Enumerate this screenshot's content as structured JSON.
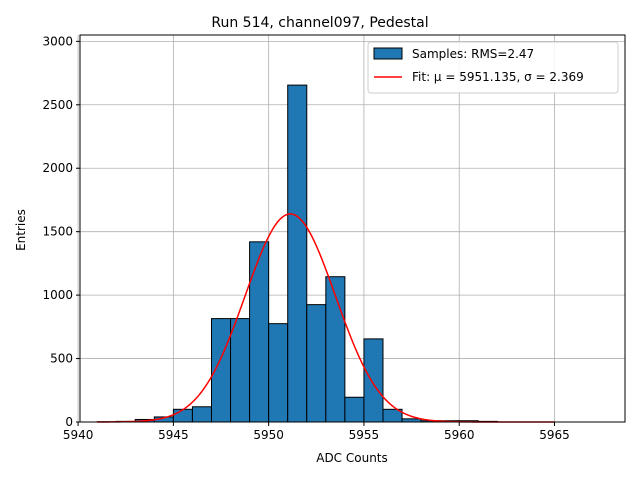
{
  "chart_data": {
    "type": "bar",
    "title": "Run 514, channel097, Pedestal",
    "xlabel": "ADC Counts",
    "ylabel": "Entries",
    "xlim": [
      5940.1,
      5968.7
    ],
    "ylim": [
      0,
      3050
    ],
    "xticks": [
      5940,
      5945,
      5950,
      5955,
      5960,
      5965
    ],
    "yticks": [
      0,
      500,
      1000,
      1500,
      2000,
      2500,
      3000
    ],
    "grid": true,
    "legend_position": "top-right",
    "bar_color": "#1f77b4",
    "fit_color": "#ff0000",
    "bin_width": 1,
    "histogram": {
      "name": "Samples: RMS=2.47",
      "bin_starts": [
        5941,
        5942,
        5943,
        5944,
        5945,
        5946,
        5947,
        5948,
        5949,
        5950,
        5951,
        5952,
        5953,
        5954,
        5955,
        5956,
        5957,
        5958,
        5959,
        5960,
        5961
      ],
      "values": [
        2,
        5,
        20,
        40,
        100,
        120,
        815,
        815,
        1420,
        775,
        2655,
        925,
        1145,
        195,
        655,
        100,
        25,
        10,
        10,
        10,
        5
      ]
    },
    "fit": {
      "name": "Fit: μ = 5951.135, σ = 2.369",
      "mu": 5951.135,
      "sigma": 2.369,
      "amplitude": 1640,
      "x_range": [
        5941,
        5965
      ]
    }
  }
}
